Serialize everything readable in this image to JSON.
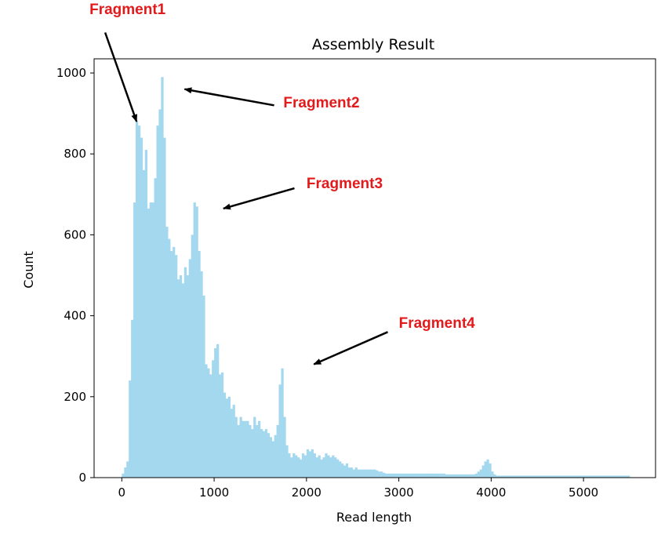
{
  "chart_data": {
    "type": "bar",
    "subtype": "histogram",
    "title": "Assembly Result",
    "xlabel": "Read length",
    "ylabel": "Count",
    "xlim": [
      -300,
      5780
    ],
    "ylim": [
      0,
      1035
    ],
    "xticks": [
      0,
      1000,
      2000,
      3000,
      4000,
      5000
    ],
    "yticks": [
      0,
      200,
      400,
      600,
      800,
      1000
    ],
    "bar_color": "#a3d8ef",
    "grid": false,
    "bin_width": 25,
    "bins_start": 0,
    "values": [
      10,
      25,
      40,
      240,
      390,
      680,
      880,
      870,
      840,
      760,
      810,
      665,
      680,
      680,
      740,
      870,
      910,
      990,
      840,
      620,
      590,
      560,
      570,
      550,
      490,
      500,
      480,
      520,
      500,
      540,
      600,
      680,
      670,
      560,
      510,
      450,
      280,
      270,
      255,
      290,
      320,
      330,
      255,
      260,
      210,
      195,
      200,
      170,
      180,
      150,
      130,
      150,
      140,
      140,
      140,
      130,
      120,
      150,
      130,
      140,
      120,
      115,
      120,
      110,
      100,
      90,
      105,
      130,
      230,
      270,
      150,
      80,
      60,
      50,
      60,
      55,
      50,
      45,
      60,
      55,
      70,
      65,
      70,
      60,
      50,
      55,
      45,
      50,
      60,
      55,
      50,
      55,
      50,
      45,
      40,
      35,
      30,
      35,
      25,
      25,
      20,
      25,
      20,
      20,
      20,
      20,
      20,
      20,
      20,
      20,
      18,
      15,
      15,
      12,
      10,
      10,
      10,
      10,
      10,
      10,
      10,
      10,
      10,
      10,
      10,
      10,
      10,
      10,
      10,
      10,
      10,
      10,
      10,
      10,
      10,
      10,
      10,
      10,
      10,
      10,
      8,
      8,
      8,
      8,
      8,
      8,
      8,
      8,
      8,
      8,
      8,
      8,
      8,
      10,
      15,
      20,
      30,
      40,
      45,
      35,
      15,
      8,
      5,
      5,
      5,
      5,
      5,
      5,
      5,
      5,
      5,
      5,
      5,
      5,
      5,
      5,
      5,
      5,
      5,
      5,
      5,
      5,
      5,
      5,
      5,
      5,
      5,
      5,
      5,
      5,
      5,
      5,
      5,
      5,
      5,
      5,
      5,
      5,
      5,
      5,
      5,
      5,
      5,
      5,
      5,
      5,
      5,
      5,
      5,
      5,
      5,
      5,
      5,
      5,
      5,
      5,
      5,
      5,
      5,
      5
    ],
    "annotations": [
      {
        "text": "Fragment1",
        "label_x": -350,
        "label_y": 1145,
        "arrow_from": [
          -180,
          1100
        ],
        "arrow_to": [
          160,
          880
        ]
      },
      {
        "text": "Fragment2",
        "label_x": 1750,
        "label_y": 915,
        "arrow_from": [
          1650,
          920
        ],
        "arrow_to": [
          680,
          960
        ]
      },
      {
        "text": "Fragment3",
        "label_x": 2000,
        "label_y": 715,
        "arrow_from": [
          1870,
          715
        ],
        "arrow_to": [
          1100,
          665
        ]
      },
      {
        "text": "Fragment4",
        "label_x": 3000,
        "label_y": 370,
        "arrow_from": [
          2880,
          360
        ],
        "arrow_to": [
          2080,
          280
        ]
      }
    ]
  }
}
